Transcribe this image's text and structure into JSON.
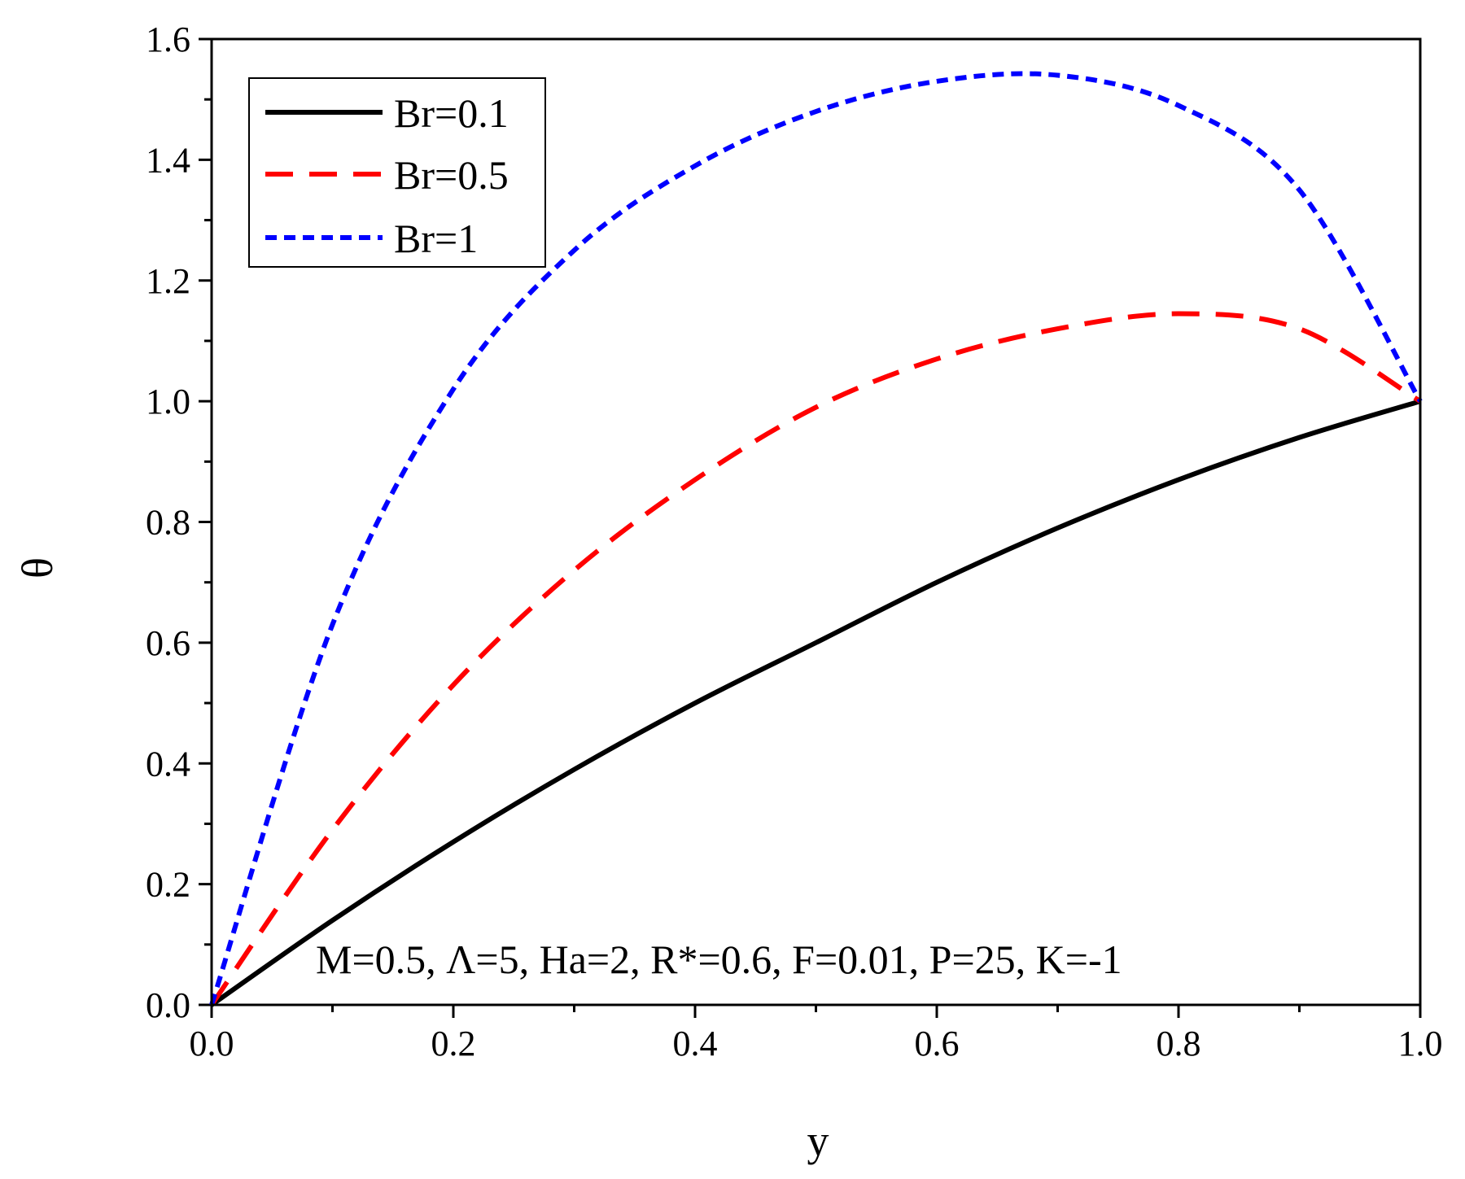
{
  "chart_data": {
    "type": "line",
    "title": "",
    "xlabel": "y",
    "ylabel": "θ",
    "xlim": [
      0.0,
      1.0
    ],
    "ylim": [
      0.0,
      1.6
    ],
    "x_ticks": [
      "0.0",
      "0.2",
      "0.4",
      "0.6",
      "0.8",
      "1.0"
    ],
    "y_ticks": [
      "0.0",
      "0.2",
      "0.4",
      "0.6",
      "0.8",
      "1.0",
      "1.2",
      "1.4",
      "1.6"
    ],
    "grid": false,
    "legend_position": "top-left",
    "annotation": "M=0.5, Λ=5, Ha=2, R*=0.6, F=0.01, P=25, K=-1",
    "x": [
      0.0,
      0.1,
      0.2,
      0.3,
      0.4,
      0.5,
      0.6,
      0.7,
      0.8,
      0.9,
      1.0
    ],
    "series": [
      {
        "name": "Br=0.1",
        "color": "#000000",
        "style": "solid",
        "values": [
          0.0,
          0.14,
          0.27,
          0.39,
          0.5,
          0.6,
          0.7,
          0.79,
          0.87,
          0.94,
          1.0
        ]
      },
      {
        "name": "Br=0.5",
        "color": "#ff0000",
        "style": "dashed",
        "values": [
          0.0,
          0.29,
          0.53,
          0.72,
          0.87,
          0.99,
          1.07,
          1.12,
          1.145,
          1.12,
          1.0
        ]
      },
      {
        "name": "Br=1",
        "color": "#0000ff",
        "style": "dotted",
        "values": [
          0.0,
          0.63,
          1.02,
          1.25,
          1.39,
          1.48,
          1.53,
          1.54,
          1.49,
          1.35,
          1.0
        ]
      }
    ]
  }
}
